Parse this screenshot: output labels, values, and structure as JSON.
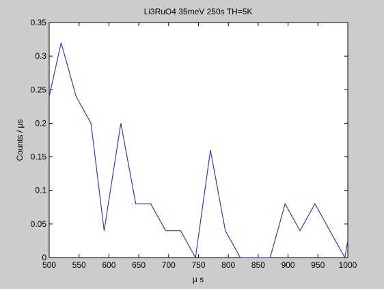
{
  "chart_data": {
    "type": "line",
    "title": "Li3RuO4 35meV 250s TH=5K",
    "xlabel": "μ s",
    "ylabel": "Counts / μs",
    "xlim": [
      500,
      1000
    ],
    "ylim": [
      0,
      0.35
    ],
    "xticks": [
      "500",
      "550",
      "600",
      "650",
      "700",
      "750",
      "800",
      "850",
      "900",
      "950",
      "1000"
    ],
    "yticks": [
      "0",
      "0.05",
      "0.1",
      "0.15",
      "0.2",
      "0.25",
      "0.3",
      "0.35"
    ],
    "grid": false,
    "series": [
      {
        "color": "#3a3aa8",
        "x": [
          500,
          520,
          545,
          570,
          592,
          620,
          645,
          670,
          695,
          720,
          745,
          770,
          795,
          820,
          845,
          870,
          895,
          920,
          945,
          970,
          995,
          1000
        ],
        "y": [
          0.24,
          0.32,
          0.24,
          0.2,
          0.04,
          0.2,
          0.08,
          0.08,
          0.04,
          0.04,
          0.0,
          0.16,
          0.04,
          0.0,
          0.0,
          0.0,
          0.08,
          0.04,
          0.08,
          0.04,
          0.0,
          0.025
        ]
      }
    ]
  }
}
